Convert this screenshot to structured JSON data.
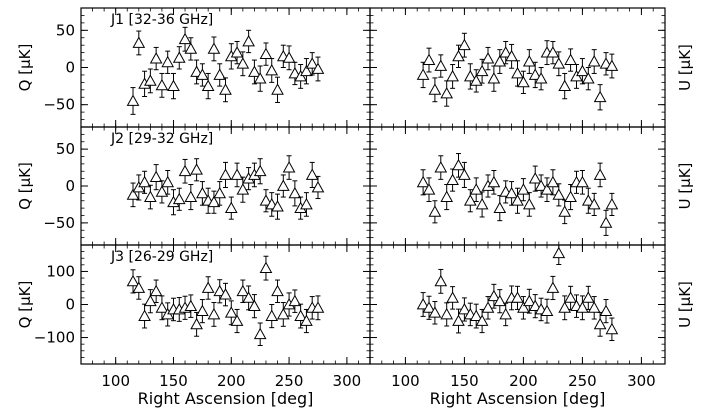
{
  "chart_data": {
    "type": "scatter",
    "marker": "open-triangle-with-errorbars",
    "xlabel": "Right Ascension [deg]",
    "xlim": [
      70,
      320
    ],
    "xticks": [
      100,
      150,
      200,
      250,
      300
    ],
    "x": [
      115,
      120,
      125,
      130,
      135,
      140,
      145,
      150,
      155,
      160,
      165,
      170,
      175,
      180,
      185,
      190,
      195,
      200,
      205,
      210,
      215,
      220,
      225,
      230,
      235,
      240,
      245,
      250,
      255,
      260,
      265,
      270,
      275
    ],
    "rows": [
      {
        "label": "J1 [32-36 GHz]",
        "ylim": [
          -80,
          80
        ],
        "yticks": [
          50,
          0,
          -50
        ],
        "panels": [
          {
            "ylabel": "Q [μK]",
            "y": [
              -45,
              33,
              -22,
              -18,
              12,
              -24,
              7,
              -25,
              13,
              38,
              25,
              -6,
              -10,
              -25,
              25,
              -10,
              -30,
              15,
              20,
              5,
              35,
              -6,
              -15,
              18,
              -4,
              -30,
              15,
              13,
              -8,
              -12,
              -5,
              5,
              -2
            ],
            "err": [
              18,
              16,
              17,
              16,
              15,
              16,
              15,
              17,
              15,
              16,
              15,
              16,
              15,
              17,
              16,
              15,
              16,
              17,
              15,
              16,
              15,
              16,
              17,
              15,
              16,
              17,
              15,
              16,
              15,
              16,
              17,
              15,
              16
            ]
          },
          {
            "ylabel": "U [μK]",
            "y": [
              -10,
              10,
              -30,
              2,
              -35,
              -12,
              15,
              30,
              -12,
              -18,
              -5,
              12,
              -15,
              8,
              20,
              15,
              -8,
              -20,
              8,
              -10,
              -15,
              20,
              20,
              5,
              -25,
              10,
              -12,
              -5,
              -15,
              8,
              -40,
              5,
              2
            ],
            "err": [
              17,
              16,
              16,
              15,
              17,
              16,
              15,
              16,
              17,
              15,
              16,
              15,
              17,
              16,
              15,
              16,
              17,
              15,
              16,
              17,
              15,
              16,
              15,
              16,
              17,
              15,
              16,
              17,
              15,
              16,
              17,
              15,
              16
            ]
          }
        ]
      },
      {
        "label": "J2 [29-32 GHz]",
        "ylim": [
          -80,
          80
        ],
        "yticks": [
          50,
          0,
          -50
        ],
        "panels": [
          {
            "ylabel": "Q [μK]",
            "y": [
              -12,
              -2,
              5,
              -15,
              12,
              -8,
              5,
              -22,
              -18,
              20,
              -15,
              22,
              -10,
              -20,
              -22,
              -10,
              15,
              -30,
              15,
              -5,
              10,
              15,
              20,
              -20,
              -25,
              -28,
              0,
              25,
              -10,
              -30,
              -25,
              15,
              -2
            ],
            "err": [
              16,
              17,
              15,
              16,
              17,
              15,
              16,
              17,
              15,
              16,
              17,
              15,
              16,
              17,
              15,
              16,
              17,
              15,
              16,
              17,
              15,
              16,
              17,
              15,
              16,
              17,
              15,
              16,
              17,
              15,
              16,
              17,
              15
            ]
          },
          {
            "ylabel": "U [μK]",
            "y": [
              5,
              -5,
              -35,
              25,
              -15,
              8,
              28,
              15,
              -20,
              -5,
              -25,
              0,
              5,
              -30,
              -8,
              -10,
              -20,
              -5,
              -25,
              10,
              0,
              -5,
              5,
              -12,
              -35,
              -15,
              5,
              5,
              -20,
              -25,
              15,
              -50,
              -25
            ],
            "err": [
              17,
              16,
              15,
              16,
              17,
              15,
              16,
              17,
              15,
              16,
              17,
              15,
              16,
              17,
              15,
              16,
              17,
              15,
              16,
              17,
              15,
              16,
              17,
              15,
              16,
              17,
              15,
              16,
              17,
              15,
              16,
              17,
              15
            ]
          }
        ]
      },
      {
        "label": "J3 [26-29 GHz]",
        "ylim": [
          -180,
          180
        ],
        "yticks": [
          100,
          0,
          -100
        ],
        "panels": [
          {
            "ylabel": "Q [μK]",
            "y": [
              70,
              50,
              -35,
              10,
              40,
              -10,
              -30,
              -15,
              -15,
              -10,
              -5,
              -60,
              -20,
              50,
              -30,
              40,
              30,
              -25,
              -50,
              40,
              20,
              -5,
              -90,
              110,
              -35,
              40,
              -30,
              0,
              10,
              -35,
              -50,
              -10,
              -10
            ],
            "err": [
              35,
              34,
              36,
              35,
              34,
              36,
              35,
              34,
              36,
              35,
              34,
              36,
              35,
              34,
              36,
              35,
              34,
              36,
              35,
              34,
              36,
              35,
              34,
              36,
              35,
              34,
              36,
              35,
              34,
              36,
              35,
              34,
              36
            ]
          },
          {
            "ylabel": "U [μK]",
            "y": [
              0,
              -10,
              -25,
              70,
              -30,
              20,
              -50,
              -15,
              -30,
              -35,
              -50,
              -10,
              25,
              10,
              -30,
              20,
              20,
              -10,
              10,
              -5,
              -15,
              -20,
              50,
              155,
              -10,
              20,
              -5,
              -10,
              20,
              -10,
              -60,
              -20,
              -75
            ],
            "err": [
              36,
              35,
              34,
              36,
              35,
              34,
              36,
              35,
              34,
              36,
              35,
              34,
              36,
              35,
              34,
              36,
              35,
              34,
              36,
              35,
              34,
              36,
              35,
              34,
              36,
              35,
              34,
              36,
              35,
              34,
              36,
              35,
              34
            ]
          }
        ]
      }
    ]
  }
}
